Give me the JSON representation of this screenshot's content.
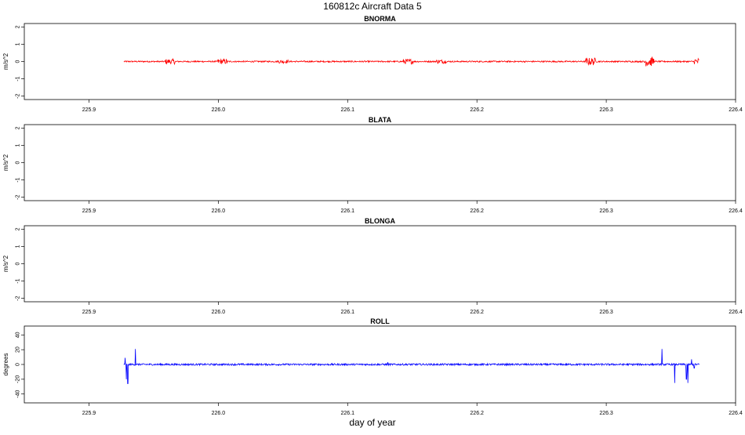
{
  "title": "160812c   Aircraft Data 5",
  "xlabel": "day of year",
  "chart_data": [
    {
      "type": "line",
      "title": "BNORMA",
      "ylabel": "m/s^2",
      "color": "#ff0000",
      "xlim": [
        225.85,
        226.4
      ],
      "ylim": [
        -2.2,
        2.2
      ],
      "xticks": [
        "225.9",
        "226.0",
        "226.1",
        "226.2",
        "226.3",
        "226.4"
      ],
      "yticks": [
        "-2",
        "-1",
        "0",
        "1",
        "2"
      ],
      "data_extent": [
        225.927,
        226.372
      ],
      "noise": {
        "base": 0.04,
        "bursts": [
          [
            225.963,
            0.15
          ],
          [
            226.003,
            0.15
          ],
          [
            226.05,
            0.1
          ],
          [
            226.147,
            0.15
          ],
          [
            226.172,
            0.12
          ],
          [
            226.288,
            0.22
          ],
          [
            226.333,
            0.28
          ],
          [
            226.372,
            0.2
          ]
        ]
      }
    },
    {
      "type": "line",
      "title": "BLATA",
      "ylabel": "m/s^2",
      "color": "#ff0000",
      "xlim": [
        225.85,
        226.4
      ],
      "ylim": [
        -2.2,
        2.2
      ],
      "xticks": [
        "225.9",
        "226.0",
        "226.1",
        "226.2",
        "226.3",
        "226.4"
      ],
      "yticks": [
        "-2",
        "-1",
        "0",
        "1",
        "2"
      ]
    },
    {
      "type": "line",
      "title": "BLONGA",
      "ylabel": "m/s^2",
      "color": "#ff0000",
      "xlim": [
        225.85,
        226.4
      ],
      "ylim": [
        -2.2,
        2.2
      ],
      "xticks": [
        "225.9",
        "226.0",
        "226.1",
        "226.2",
        "226.3",
        "226.4"
      ],
      "yticks": [
        "-2",
        "-1",
        "0",
        "1",
        "2"
      ]
    },
    {
      "type": "line",
      "title": "ROLL",
      "ylabel": "degrees",
      "color": "#0000ff",
      "xlim": [
        225.85,
        226.4
      ],
      "ylim": [
        -52,
        52
      ],
      "xticks": [
        "225.9",
        "226.0",
        "226.1",
        "226.2",
        "226.3",
        "226.4"
      ],
      "yticks": [
        "-40",
        "-20",
        "0",
        "20",
        "40"
      ],
      "data_extent": [
        225.927,
        226.372
      ],
      "features": [
        {
          "x": 225.928,
          "y": 9
        },
        {
          "x": 225.929,
          "y": -20
        },
        {
          "x": 225.93,
          "y": -26
        },
        {
          "x": 225.936,
          "y": 21
        },
        {
          "x": 226.131,
          "y": 3
        },
        {
          "x": 226.343,
          "y": 21
        },
        {
          "x": 226.353,
          "y": -25
        },
        {
          "x": 226.362,
          "y": -20
        },
        {
          "x": 226.363,
          "y": -25
        },
        {
          "x": 226.366,
          "y": 7
        },
        {
          "x": 226.368,
          "y": -5
        }
      ],
      "noise": {
        "base": 1.2,
        "bursts": []
      }
    }
  ]
}
